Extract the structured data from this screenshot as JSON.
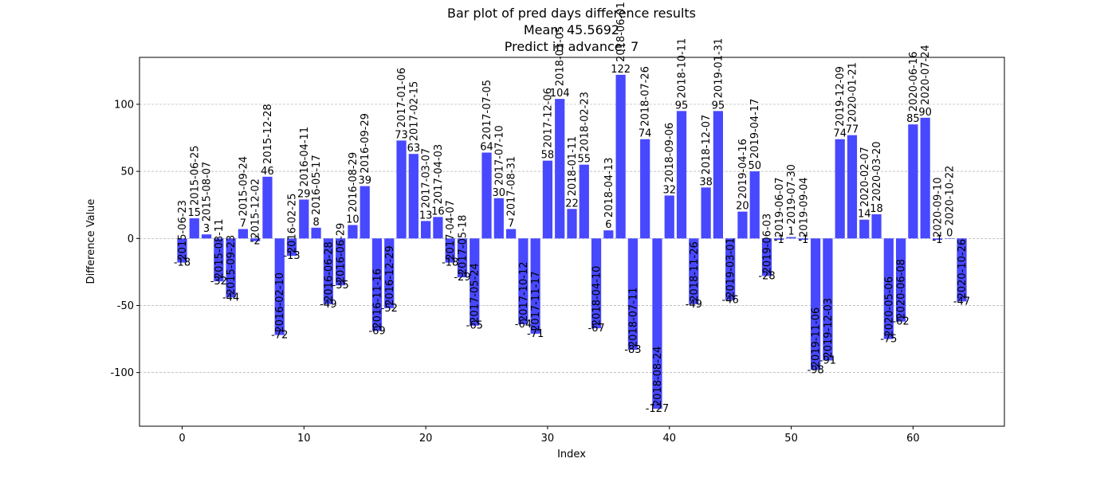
{
  "chart_data": {
    "type": "bar",
    "title_lines": [
      "Bar plot of pred days difference results",
      "Mean: 45.5692",
      "Predict in advance: 7"
    ],
    "xlabel": "Index",
    "ylabel": "Difference Value",
    "bar_color": "#4848ff",
    "grid": "horizontal dashed",
    "xlim": [
      -3.5,
      67.5
    ],
    "ylim": [
      -140,
      135
    ],
    "xticks": [
      0,
      10,
      20,
      30,
      40,
      50,
      60
    ],
    "yticks": [
      -100,
      -50,
      0,
      50,
      100
    ],
    "x": [
      0,
      1,
      2,
      3,
      4,
      5,
      6,
      7,
      8,
      9,
      10,
      11,
      12,
      13,
      14,
      15,
      16,
      17,
      18,
      19,
      20,
      21,
      22,
      23,
      24,
      25,
      26,
      27,
      28,
      29,
      30,
      31,
      32,
      33,
      34,
      35,
      36,
      37,
      38,
      39,
      40,
      41,
      42,
      43,
      44,
      45,
      46,
      47,
      48,
      49,
      50,
      51,
      52,
      53,
      54,
      55,
      56,
      57,
      58,
      59,
      60,
      61,
      62,
      63,
      64
    ],
    "values": [
      -18,
      15,
      3,
      -32,
      -44,
      7,
      -2,
      46,
      -72,
      -13,
      29,
      8,
      -49,
      -35,
      10,
      39,
      -69,
      -52,
      73,
      63,
      13,
      16,
      -18,
      -29,
      -65,
      64,
      30,
      7,
      -64,
      -71,
      58,
      104,
      22,
      55,
      -67,
      6,
      122,
      -83,
      74,
      -127,
      32,
      95,
      -49,
      38,
      95,
      -46,
      20,
      50,
      -28,
      -1,
      1,
      -1,
      -98,
      -91,
      74,
      77,
      14,
      18,
      -75,
      -62,
      85,
      90,
      -1,
      0,
      -47
    ],
    "value_labels": [
      "-18",
      "15",
      "3",
      "-32",
      "-44",
      "7",
      "-2",
      "46",
      "-72",
      "-13",
      "29",
      "8",
      "-49",
      "-35",
      "10",
      "39",
      "-69",
      "-52",
      "73",
      "63",
      "13",
      "16",
      "-18",
      "-29",
      "-65",
      "64",
      "30",
      "7",
      "-64",
      "-71",
      "58",
      "104",
      "22",
      "55",
      "-67",
      "6",
      "122",
      "-83",
      "74",
      "-127",
      "32",
      "95",
      "-49",
      "38",
      "95",
      "-46",
      "20",
      "50",
      "-28",
      "-1",
      "1",
      "-1",
      "-98",
      "-91",
      "74",
      "77",
      "14",
      "18",
      "-75",
      "-62",
      "85",
      "90",
      "-1",
      "0",
      "-47"
    ],
    "dates": [
      "2015-06-23",
      "2015-06-25",
      "2015-08-07",
      "2015-08-11",
      "2015-09-23",
      "2015-09-24",
      "2015-12-02",
      "2015-12-28",
      "2016-02-10",
      "2016-02-25",
      "2016-04-11",
      "2016-05-17",
      "2016-06-28",
      "2016-06-29",
      "2016-08-29",
      "2016-09-29",
      "2016-11-16",
      "2016-12-29",
      "2017-01-06",
      "2017-02-15",
      "2017-03-07",
      "2017-04-03",
      "2017-04-07",
      "2017-05-18",
      "2017-05-24",
      "2017-07-05",
      "2017-07-10",
      "2017-08-31",
      "2017-10-12",
      "2017-11-17",
      "2017-12-06",
      "2018-01-05",
      "2018-01-11",
      "2018-02-23",
      "2018-04-10",
      "2018-04-13",
      "2018-06-01",
      "2018-07-11",
      "2018-07-26",
      "2018-08-24",
      "2018-09-06",
      "2018-10-11",
      "2018-11-26",
      "2018-12-07",
      "2019-01-31",
      "2019-03-01",
      "2019-04-16",
      "2019-04-17",
      "2019-06-03",
      "2019-06-07",
      "2019-07-30",
      "2019-09-04",
      "2019-11-06",
      "2019-12-03",
      "2019-12-09",
      "2020-01-21",
      "2020-02-07",
      "2020-03-20",
      "2020-05-06",
      "2020-06-08",
      "2020-06-16",
      "2020-07-24",
      "2020-09-10",
      "2020-10-22",
      "2020-10-26"
    ]
  }
}
